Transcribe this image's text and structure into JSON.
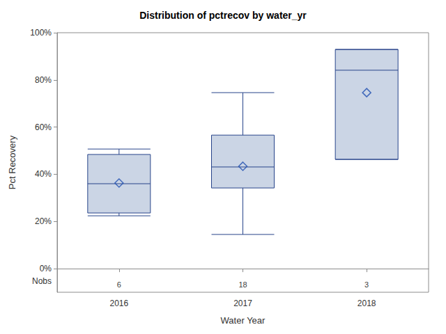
{
  "chart_data": {
    "type": "boxplot",
    "title": "Distribution of pctrecov by water_yr",
    "x_label": "Water Year",
    "y_label": "Pct Recovery",
    "categories": [
      "2016",
      "2017",
      "2018"
    ],
    "stats": [
      [
        22.4,
        23.6,
        36,
        48.4,
        50.7
      ],
      [
        14.5,
        34.2,
        43.1,
        56.6,
        74.6
      ],
      [
        46.3,
        46.3,
        84.1,
        92.9,
        92.9
      ]
    ],
    "means": [
      36.3,
      43.4,
      74.6
    ],
    "marker": "diamond",
    "nobs_label": "Nobs",
    "nobs": [
      6,
      18,
      3
    ],
    "color": "#cbd5e5",
    "ylim": [
      -10,
      100
    ],
    "yticks": [
      {
        "value": 0,
        "label": "0%"
      },
      {
        "value": 20,
        "label": "20%"
      },
      {
        "value": 40,
        "label": "40%"
      },
      {
        "value": 60,
        "label": "60%"
      },
      {
        "value": 80,
        "label": "80%"
      },
      {
        "value": 100,
        "label": "100%"
      }
    ],
    "grid": false
  }
}
